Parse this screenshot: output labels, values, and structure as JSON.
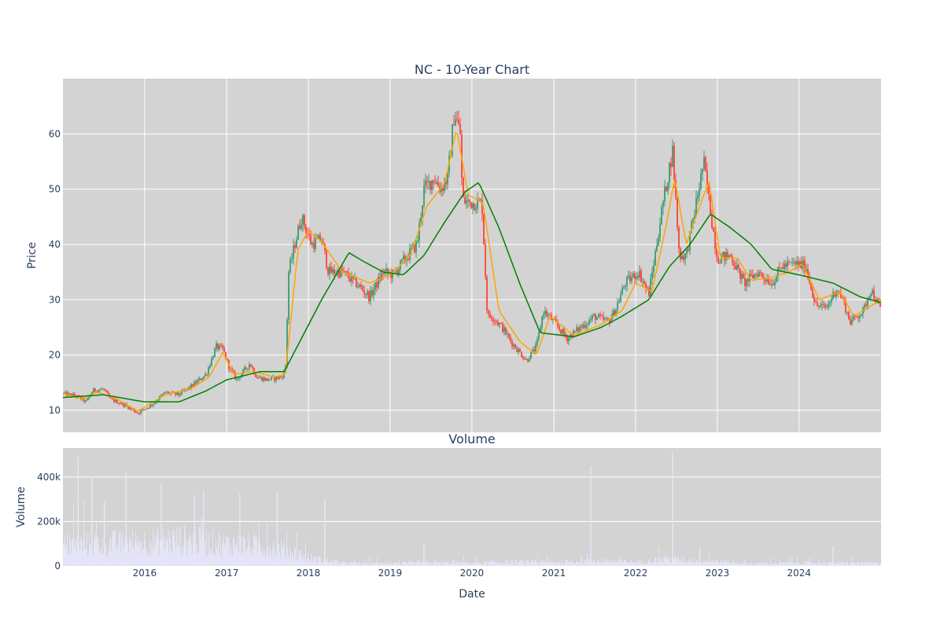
{
  "chart_data": [
    {
      "type": "candlestick",
      "title": "NC - 10-Year Chart",
      "xlabel": "",
      "ylabel": "Price",
      "ylim": [
        6,
        70
      ],
      "xlim": [
        "2015-01-01",
        "2025-01-01"
      ],
      "y_ticks": [
        10,
        20,
        30,
        40,
        50,
        60
      ],
      "grid": true,
      "colors": {
        "up": "#3d9970",
        "down": "#ff4136",
        "ma_short": "orange",
        "ma_long": "green",
        "plot_bg": "#d3d3d3",
        "grid": "#ffffff"
      },
      "price_keypoints": [
        [
          "2015-01-01",
          13.0
        ],
        [
          "2015-03-01",
          12.6
        ],
        [
          "2015-04-15",
          11.5
        ],
        [
          "2015-05-15",
          13.6
        ],
        [
          "2015-07-01",
          13.8
        ],
        [
          "2015-08-01",
          12.0
        ],
        [
          "2015-10-01",
          11.0
        ],
        [
          "2015-12-01",
          9.5
        ],
        [
          "2016-02-01",
          11.0
        ],
        [
          "2016-04-01",
          13.2
        ],
        [
          "2016-06-01",
          12.8
        ],
        [
          "2016-08-01",
          14.5
        ],
        [
          "2016-10-01",
          16.5
        ],
        [
          "2016-11-15",
          21.5
        ],
        [
          "2016-12-15",
          21.0
        ],
        [
          "2017-01-15",
          17.5
        ],
        [
          "2017-02-15",
          15.5
        ],
        [
          "2017-04-15",
          18.5
        ],
        [
          "2017-05-15",
          16.0
        ],
        [
          "2017-07-01",
          15.5
        ],
        [
          "2017-09-01",
          16.0
        ],
        [
          "2017-09-20",
          17.0
        ],
        [
          "2017-10-05",
          35.0
        ],
        [
          "2017-11-01",
          40.0
        ],
        [
          "2017-12-01",
          45.0
        ],
        [
          "2018-01-15",
          40.0
        ],
        [
          "2018-03-01",
          41.0
        ],
        [
          "2018-04-01",
          35.0
        ],
        [
          "2018-06-01",
          35.0
        ],
        [
          "2018-08-01",
          33.0
        ],
        [
          "2018-10-01",
          30.5
        ],
        [
          "2018-12-01",
          35.0
        ],
        [
          "2019-01-15",
          34.5
        ],
        [
          "2019-03-01",
          37.0
        ],
        [
          "2019-05-01",
          40.0
        ],
        [
          "2019-06-01",
          50.0
        ],
        [
          "2019-07-15",
          52.0
        ],
        [
          "2019-08-15",
          50.0
        ],
        [
          "2019-09-15",
          52.0
        ],
        [
          "2019-10-15",
          64.0
        ],
        [
          "2019-11-10",
          60.0
        ],
        [
          "2019-11-20",
          48.0
        ],
        [
          "2020-01-01",
          47.5
        ],
        [
          "2020-02-15",
          47.5
        ],
        [
          "2020-03-10",
          27.0
        ],
        [
          "2020-04-01",
          27.0
        ],
        [
          "2020-05-15",
          25.0
        ],
        [
          "2020-07-01",
          22.0
        ],
        [
          "2020-09-01",
          19.0
        ],
        [
          "2020-10-15",
          21.5
        ],
        [
          "2020-11-15",
          28.0
        ],
        [
          "2021-01-01",
          26.0
        ],
        [
          "2021-03-01",
          23.0
        ],
        [
          "2021-05-01",
          25.0
        ],
        [
          "2021-07-01",
          27.0
        ],
        [
          "2021-09-01",
          26.0
        ],
        [
          "2021-10-01",
          28.0
        ],
        [
          "2021-11-15",
          33.0
        ],
        [
          "2022-01-15",
          35.0
        ],
        [
          "2022-03-01",
          31.0
        ],
        [
          "2022-04-01",
          39.0
        ],
        [
          "2022-05-01",
          47.0
        ],
        [
          "2022-06-15",
          57.0
        ],
        [
          "2022-07-15",
          38.0
        ],
        [
          "2022-08-15",
          38.0
        ],
        [
          "2022-10-01",
          48.0
        ],
        [
          "2022-11-01",
          55.0
        ],
        [
          "2022-12-01",
          46.0
        ],
        [
          "2023-01-01",
          37.5
        ],
        [
          "2023-03-01",
          38.0
        ],
        [
          "2023-05-01",
          33.0
        ],
        [
          "2023-06-01",
          34.0
        ],
        [
          "2023-07-01",
          35.0
        ],
        [
          "2023-09-01",
          33.0
        ],
        [
          "2023-10-15",
          36.0
        ],
        [
          "2023-12-15",
          36.5
        ],
        [
          "2024-02-01",
          36.0
        ],
        [
          "2024-03-15",
          29.0
        ],
        [
          "2024-05-01",
          28.5
        ],
        [
          "2024-06-15",
          32.0
        ],
        [
          "2024-07-15",
          30.0
        ],
        [
          "2024-08-15",
          26.0
        ],
        [
          "2024-10-15",
          28.0
        ],
        [
          "2024-11-15",
          32.0
        ],
        [
          "2025-01-01",
          28.0
        ]
      ],
      "ma_short_keypoints": [
        [
          "2015-01-01",
          13.0
        ],
        [
          "2015-04-01",
          12.0
        ],
        [
          "2015-06-01",
          13.3
        ],
        [
          "2015-09-01",
          12.0
        ],
        [
          "2015-12-01",
          9.8
        ],
        [
          "2016-04-01",
          12.8
        ],
        [
          "2016-08-01",
          14.0
        ],
        [
          "2016-10-15",
          16.0
        ],
        [
          "2016-12-15",
          20.5
        ],
        [
          "2017-02-01",
          16.5
        ],
        [
          "2017-05-01",
          17.0
        ],
        [
          "2017-08-01",
          16.0
        ],
        [
          "2017-09-20",
          16.5
        ],
        [
          "2017-11-15",
          39.0
        ],
        [
          "2018-01-01",
          42.5
        ],
        [
          "2018-03-01",
          40.5
        ],
        [
          "2018-06-01",
          35.0
        ],
        [
          "2018-10-01",
          33.0
        ],
        [
          "2019-01-01",
          34.5
        ],
        [
          "2019-04-01",
          38.0
        ],
        [
          "2019-06-15",
          47.0
        ],
        [
          "2019-09-01",
          51.0
        ],
        [
          "2019-10-25",
          61.0
        ],
        [
          "2019-12-15",
          49.0
        ],
        [
          "2020-02-20",
          47.5
        ],
        [
          "2020-05-01",
          28.0
        ],
        [
          "2020-08-01",
          22.5
        ],
        [
          "2020-10-15",
          20.0
        ],
        [
          "2020-12-15",
          27.0
        ],
        [
          "2021-04-01",
          23.5
        ],
        [
          "2021-08-01",
          25.5
        ],
        [
          "2021-11-01",
          28.0
        ],
        [
          "2022-01-01",
          33.0
        ],
        [
          "2022-03-15",
          31.5
        ],
        [
          "2022-05-15",
          43.0
        ],
        [
          "2022-06-25",
          52.0
        ],
        [
          "2022-08-15",
          40.0
        ],
        [
          "2022-10-15",
          47.0
        ],
        [
          "2022-11-25",
          51.5
        ],
        [
          "2023-01-15",
          37.5
        ],
        [
          "2023-04-01",
          37.5
        ],
        [
          "2023-06-01",
          33.5
        ],
        [
          "2023-09-01",
          34.0
        ],
        [
          "2023-11-15",
          35.0
        ],
        [
          "2024-01-15",
          36.5
        ],
        [
          "2024-04-01",
          30.0
        ],
        [
          "2024-07-01",
          31.5
        ],
        [
          "2024-09-01",
          27.0
        ],
        [
          "2024-11-01",
          28.5
        ],
        [
          "2025-01-01",
          30.0
        ]
      ],
      "ma_long_keypoints": [
        [
          "2015-01-01",
          12.3
        ],
        [
          "2015-07-01",
          12.8
        ],
        [
          "2016-01-01",
          11.5
        ],
        [
          "2016-06-01",
          11.5
        ],
        [
          "2016-10-01",
          13.5
        ],
        [
          "2017-01-01",
          15.5
        ],
        [
          "2017-06-01",
          17.0
        ],
        [
          "2017-09-15",
          17.0
        ],
        [
          "2017-12-01",
          23.0
        ],
        [
          "2018-03-01",
          30.0
        ],
        [
          "2018-07-01",
          38.5
        ],
        [
          "2018-09-01",
          37.0
        ],
        [
          "2018-12-01",
          35.0
        ],
        [
          "2019-03-01",
          34.5
        ],
        [
          "2019-06-01",
          38.0
        ],
        [
          "2019-09-01",
          44.0
        ],
        [
          "2019-12-01",
          49.5
        ],
        [
          "2020-02-01",
          51.2
        ],
        [
          "2020-05-01",
          43.0
        ],
        [
          "2020-08-01",
          33.0
        ],
        [
          "2020-11-01",
          24.0
        ],
        [
          "2021-04-01",
          23.3
        ],
        [
          "2021-08-01",
          25.0
        ],
        [
          "2021-11-01",
          27.0
        ],
        [
          "2022-03-01",
          30.0
        ],
        [
          "2022-06-01",
          36.0
        ],
        [
          "2022-09-01",
          40.0
        ],
        [
          "2022-12-01",
          45.5
        ],
        [
          "2023-03-01",
          43.0
        ],
        [
          "2023-06-01",
          40.0
        ],
        [
          "2023-09-01",
          35.5
        ],
        [
          "2024-01-01",
          34.5
        ],
        [
          "2024-06-01",
          33.0
        ],
        [
          "2024-10-01",
          30.5
        ],
        [
          "2025-01-01",
          29.5
        ]
      ]
    },
    {
      "type": "bar",
      "title": "Volume",
      "xlabel": "Date",
      "ylabel": "Volume",
      "ylim": [
        0,
        530000
      ],
      "y_ticks": [
        0,
        200000,
        400000
      ],
      "y_tick_labels": [
        "0",
        "200k",
        "400k"
      ],
      "x_ticks": [
        "2016",
        "2017",
        "2018",
        "2019",
        "2020",
        "2021",
        "2022",
        "2023",
        "2024"
      ],
      "grid": true,
      "colors": {
        "bars": "#e6e6fa",
        "plot_bg": "#d3d3d3",
        "grid": "#ffffff"
      },
      "volume_baseline_keypoints": [
        [
          "2015-01-01",
          100000
        ],
        [
          "2015-06-01",
          110000
        ],
        [
          "2016-01-01",
          120000
        ],
        [
          "2016-06-01",
          130000
        ],
        [
          "2017-01-01",
          110000
        ],
        [
          "2017-06-01",
          100000
        ],
        [
          "2017-10-01",
          80000
        ],
        [
          "2018-01-01",
          40000
        ],
        [
          "2018-06-01",
          15000
        ],
        [
          "2019-01-01",
          12000
        ],
        [
          "2019-06-01",
          18000
        ],
        [
          "2020-01-01",
          15000
        ],
        [
          "2020-06-01",
          20000
        ],
        [
          "2021-01-01",
          18000
        ],
        [
          "2021-06-01",
          25000
        ],
        [
          "2022-01-01",
          20000
        ],
        [
          "2022-06-01",
          35000
        ],
        [
          "2023-01-01",
          22000
        ],
        [
          "2023-06-01",
          12000
        ],
        [
          "2024-01-01",
          15000
        ],
        [
          "2025-01-01",
          15000
        ]
      ],
      "volume_spikes": [
        [
          "2015-03-10",
          490000
        ],
        [
          "2015-05-10",
          400000
        ],
        [
          "2015-07-05",
          290000
        ],
        [
          "2015-10-10",
          420000
        ],
        [
          "2016-03-15",
          370000
        ],
        [
          "2016-08-10",
          320000
        ],
        [
          "2016-09-20",
          340000
        ],
        [
          "2017-03-01",
          325000
        ],
        [
          "2017-08-15",
          330000
        ],
        [
          "2018-03-15",
          300000
        ],
        [
          "2019-06-01",
          100000
        ],
        [
          "2021-06-15",
          450000
        ],
        [
          "2022-06-15",
          510000
        ],
        [
          "2022-10-15",
          80000
        ],
        [
          "2024-06-01",
          90000
        ]
      ]
    }
  ]
}
